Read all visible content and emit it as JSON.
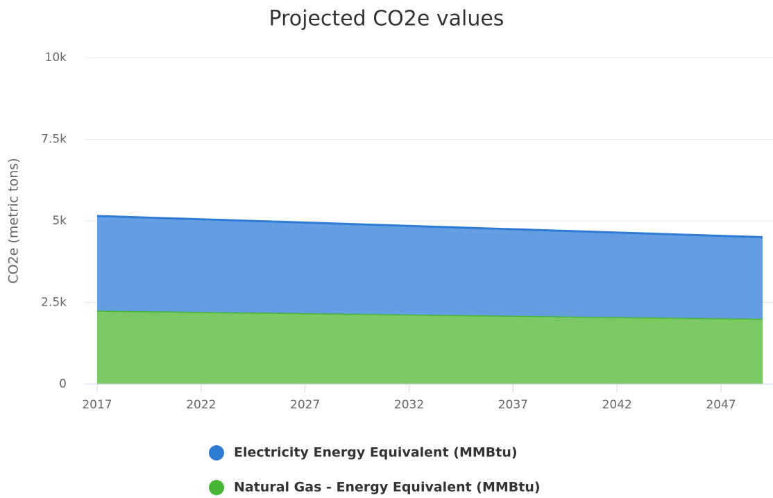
{
  "chart_data": {
    "type": "area",
    "stacked": true,
    "title": "Projected CO2e values",
    "ylabel": "CO2e (metric tons)",
    "x": [
      2017,
      2018,
      2019,
      2020,
      2021,
      2022,
      2023,
      2024,
      2025,
      2026,
      2027,
      2028,
      2029,
      2030,
      2031,
      2032,
      2033,
      2034,
      2035,
      2036,
      2037,
      2038,
      2039,
      2040,
      2041,
      2042,
      2043,
      2044,
      2045,
      2046,
      2047,
      2048,
      2049
    ],
    "series": [
      {
        "name": "Electricity Energy Equivalent (MMBtu)",
        "color": "#2e7bd6",
        "fill": "#639ee2",
        "values": [
          5150,
          5130,
          5109,
          5089,
          5069,
          5048,
          5028,
          5008,
          4988,
          4967,
          4947,
          4927,
          4906,
          4886,
          4866,
          4845,
          4825,
          4805,
          4784,
          4764,
          4744,
          4723,
          4703,
          4683,
          4663,
          4642,
          4622,
          4602,
          4581,
          4561,
          4541,
          4520,
          4500
        ]
      },
      {
        "name": "Natural Gas - Energy Equivalent (MMBtu)",
        "color": "#47b536",
        "fill": "#7cc862",
        "values": [
          2250,
          2242,
          2234,
          2227,
          2219,
          2211,
          2203,
          2195,
          2188,
          2180,
          2172,
          2164,
          2156,
          2148,
          2141,
          2133,
          2125,
          2117,
          2109,
          2102,
          2094,
          2086,
          2078,
          2070,
          2062,
          2055,
          2047,
          2039,
          2031,
          2023,
          2016,
          2008,
          2000
        ]
      }
    ],
    "xlim": [
      2016.4,
      2049.5
    ],
    "xticks": [
      2017,
      2022,
      2027,
      2032,
      2037,
      2042,
      2047
    ],
    "ylim": [
      0,
      10000
    ],
    "yticks": [
      {
        "value": 0,
        "label": "0"
      },
      {
        "value": 2500,
        "label": "2.5k"
      },
      {
        "value": 5000,
        "label": "5k"
      },
      {
        "value": 7500,
        "label": "7.5k"
      },
      {
        "value": 10000,
        "label": "10k"
      }
    ],
    "grid": true,
    "legend": "bottom"
  }
}
